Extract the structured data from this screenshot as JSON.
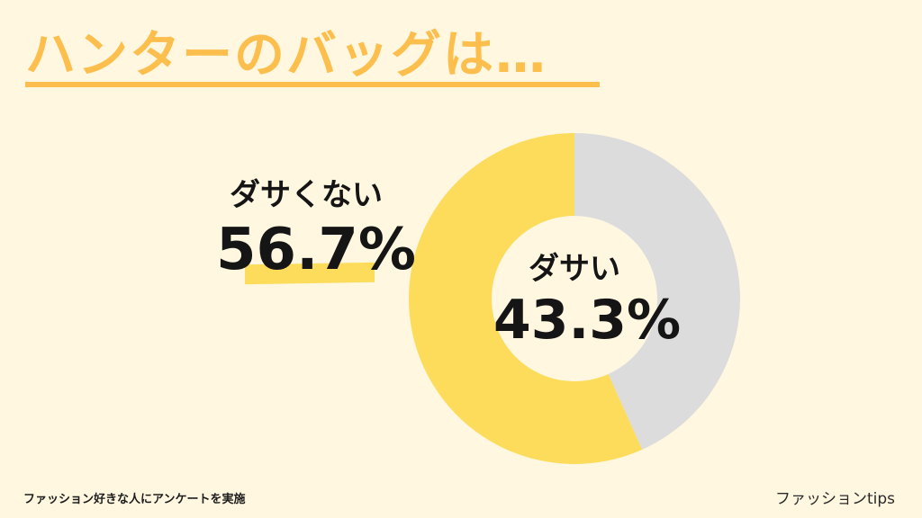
{
  "title": "ハンターのバッグは…",
  "footer": {
    "note": "ファッション好きな人にアンケートを実施",
    "brand": "ファッションtips"
  },
  "colors": {
    "background": "#FFF7E0",
    "accent": "#FCBF4E",
    "yellow": "#FDDC5C",
    "gray": "#DCDCDC"
  },
  "chart_data": {
    "type": "pie",
    "style": "donut",
    "slices": [
      {
        "label": "ダサい",
        "value": 43.3,
        "value_label": "43.3%",
        "color": "#DCDCDC"
      },
      {
        "label": "ダサくない",
        "value": 56.7,
        "value_label": "56.7%",
        "color": "#FDDC5C"
      }
    ]
  }
}
